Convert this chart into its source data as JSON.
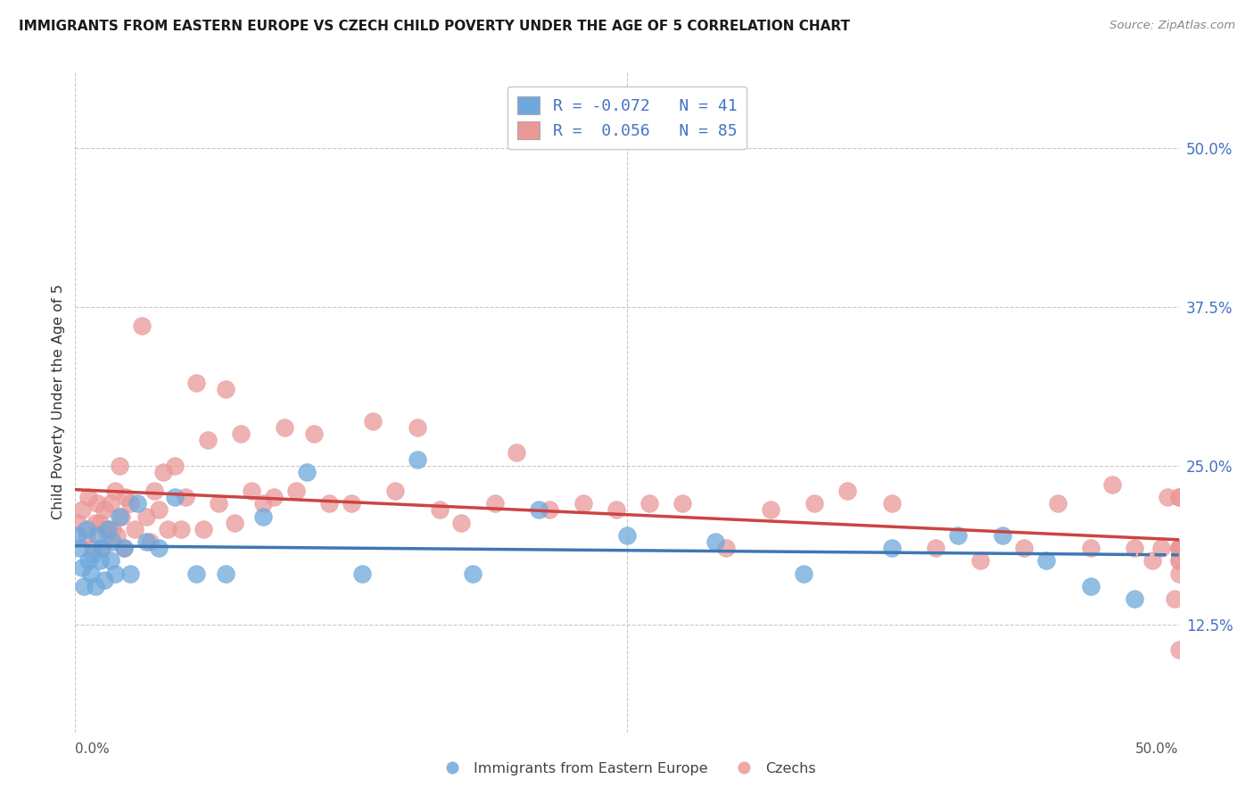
{
  "title": "IMMIGRANTS FROM EASTERN EUROPE VS CZECH CHILD POVERTY UNDER THE AGE OF 5 CORRELATION CHART",
  "source": "Source: ZipAtlas.com",
  "ylabel": "Child Poverty Under the Age of 5",
  "legend_blue_r": "-0.072",
  "legend_blue_n": "41",
  "legend_pink_r": "0.056",
  "legend_pink_n": "85",
  "blue_color": "#6fa8dc",
  "pink_color": "#ea9999",
  "blue_line_color": "#3d78b5",
  "pink_line_color": "#cc4444",
  "background_color": "#ffffff",
  "grid_color": "#c8c8c8",
  "xlim": [
    0.0,
    0.5
  ],
  "ylim": [
    0.04,
    0.56
  ],
  "yticks": [
    0.125,
    0.25,
    0.375,
    0.5
  ],
  "ytick_labels": [
    "12.5%",
    "25.0%",
    "37.5%",
    "50.0%"
  ],
  "blue_x": [
    0.001,
    0.002,
    0.003,
    0.004,
    0.005,
    0.006,
    0.007,
    0.008,
    0.009,
    0.01,
    0.011,
    0.012,
    0.013,
    0.015,
    0.016,
    0.017,
    0.018,
    0.02,
    0.022,
    0.025,
    0.028,
    0.032,
    0.038,
    0.045,
    0.055,
    0.068,
    0.085,
    0.105,
    0.13,
    0.155,
    0.18,
    0.21,
    0.25,
    0.29,
    0.33,
    0.37,
    0.4,
    0.42,
    0.44,
    0.46,
    0.48
  ],
  "blue_y": [
    0.195,
    0.185,
    0.17,
    0.155,
    0.2,
    0.175,
    0.165,
    0.18,
    0.155,
    0.195,
    0.175,
    0.185,
    0.16,
    0.2,
    0.175,
    0.19,
    0.165,
    0.21,
    0.185,
    0.165,
    0.22,
    0.19,
    0.185,
    0.225,
    0.165,
    0.165,
    0.21,
    0.245,
    0.165,
    0.255,
    0.165,
    0.215,
    0.195,
    0.19,
    0.165,
    0.185,
    0.195,
    0.195,
    0.175,
    0.155,
    0.145
  ],
  "pink_x": [
    0.001,
    0.003,
    0.005,
    0.006,
    0.008,
    0.009,
    0.01,
    0.011,
    0.012,
    0.013,
    0.014,
    0.015,
    0.016,
    0.017,
    0.018,
    0.019,
    0.02,
    0.021,
    0.022,
    0.023,
    0.025,
    0.027,
    0.03,
    0.032,
    0.034,
    0.036,
    0.038,
    0.04,
    0.042,
    0.045,
    0.048,
    0.05,
    0.055,
    0.058,
    0.06,
    0.065,
    0.068,
    0.072,
    0.075,
    0.08,
    0.085,
    0.09,
    0.095,
    0.1,
    0.108,
    0.115,
    0.125,
    0.135,
    0.145,
    0.155,
    0.165,
    0.175,
    0.19,
    0.2,
    0.215,
    0.23,
    0.245,
    0.26,
    0.275,
    0.295,
    0.315,
    0.335,
    0.35,
    0.37,
    0.39,
    0.41,
    0.43,
    0.445,
    0.46,
    0.47,
    0.48,
    0.488,
    0.492,
    0.495,
    0.498,
    0.5,
    0.5,
    0.5,
    0.5,
    0.5,
    0.5,
    0.5,
    0.5,
    0.5,
    0.5
  ],
  "pink_y": [
    0.205,
    0.215,
    0.195,
    0.225,
    0.185,
    0.205,
    0.22,
    0.205,
    0.185,
    0.215,
    0.2,
    0.195,
    0.22,
    0.2,
    0.23,
    0.195,
    0.25,
    0.21,
    0.185,
    0.225,
    0.22,
    0.2,
    0.36,
    0.21,
    0.19,
    0.23,
    0.215,
    0.245,
    0.2,
    0.25,
    0.2,
    0.225,
    0.315,
    0.2,
    0.27,
    0.22,
    0.31,
    0.205,
    0.275,
    0.23,
    0.22,
    0.225,
    0.28,
    0.23,
    0.275,
    0.22,
    0.22,
    0.285,
    0.23,
    0.28,
    0.215,
    0.205,
    0.22,
    0.26,
    0.215,
    0.22,
    0.215,
    0.22,
    0.22,
    0.185,
    0.215,
    0.22,
    0.23,
    0.22,
    0.185,
    0.175,
    0.185,
    0.22,
    0.185,
    0.235,
    0.185,
    0.175,
    0.185,
    0.225,
    0.145,
    0.175,
    0.185,
    0.225,
    0.185,
    0.105,
    0.175,
    0.165,
    0.185,
    0.225,
    0.185
  ]
}
